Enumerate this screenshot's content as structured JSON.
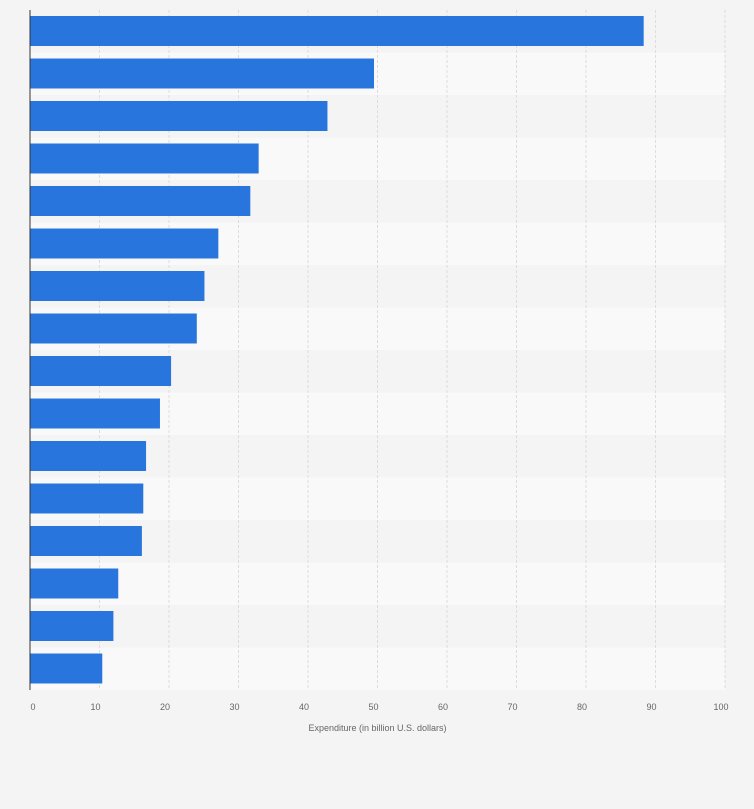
{
  "chart_data": {
    "type": "bar",
    "orientation": "horizontal",
    "title": "",
    "xlabel": "Expenditure (in billion U.S. dollars)",
    "ylabel": "",
    "xlim": [
      0,
      100
    ],
    "xticks": [
      0,
      10,
      20,
      30,
      40,
      50,
      60,
      70,
      80,
      90,
      100
    ],
    "xtick_labels": [
      "0",
      "10",
      "20",
      "30",
      "40",
      "50",
      "60",
      "70",
      "80",
      "90",
      "100"
    ],
    "categories": [
      "",
      "",
      "",
      "",
      "",
      "",
      "",
      "",
      "",
      "",
      "",
      "",
      "",
      "",
      "",
      ""
    ],
    "values": [
      88.3,
      49.5,
      42.8,
      32.9,
      31.7,
      27.1,
      25.1,
      24.0,
      20.3,
      18.7,
      16.7,
      16.3,
      16.1,
      12.7,
      12.0,
      10.4
    ],
    "grid": true,
    "bar_color": "#2876dd"
  }
}
